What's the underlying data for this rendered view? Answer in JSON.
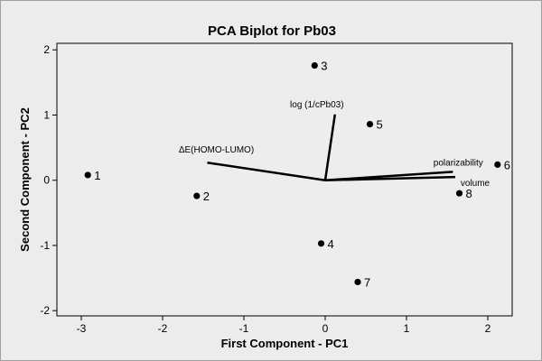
{
  "chart_data": {
    "type": "scatter",
    "title": "PCA Biplot for Pb03",
    "xlabel": "First Component - PC1",
    "ylabel": "Second Component - PC2",
    "xlim": [
      -3.3,
      2.3
    ],
    "ylim": [
      -2.08,
      2.1
    ],
    "xticks": [
      -3,
      -2,
      -1,
      0,
      1,
      2
    ],
    "yticks": [
      -2,
      -1,
      0,
      1,
      2
    ],
    "grid": false,
    "points": [
      {
        "label": "1",
        "x": -2.92,
        "y": 0.08
      },
      {
        "label": "2",
        "x": -1.58,
        "y": -0.24
      },
      {
        "label": "3",
        "x": -0.13,
        "y": 1.76
      },
      {
        "label": "4",
        "x": -0.05,
        "y": -0.97
      },
      {
        "label": "5",
        "x": 0.55,
        "y": 0.86
      },
      {
        "label": "6",
        "x": 2.12,
        "y": 0.24
      },
      {
        "label": "7",
        "x": 0.4,
        "y": -1.56
      },
      {
        "label": "8",
        "x": 1.65,
        "y": -0.2
      }
    ],
    "vectors": [
      {
        "label": "log (1/cPb03)",
        "x": 0.12,
        "y": 1.01
      },
      {
        "label": "ΔE(HOMO-LUMO)",
        "x": -1.45,
        "y": 0.27
      },
      {
        "label": "polarizability",
        "x": 1.57,
        "y": 0.13
      },
      {
        "label": "volume",
        "x": 1.6,
        "y": 0.05
      }
    ]
  }
}
